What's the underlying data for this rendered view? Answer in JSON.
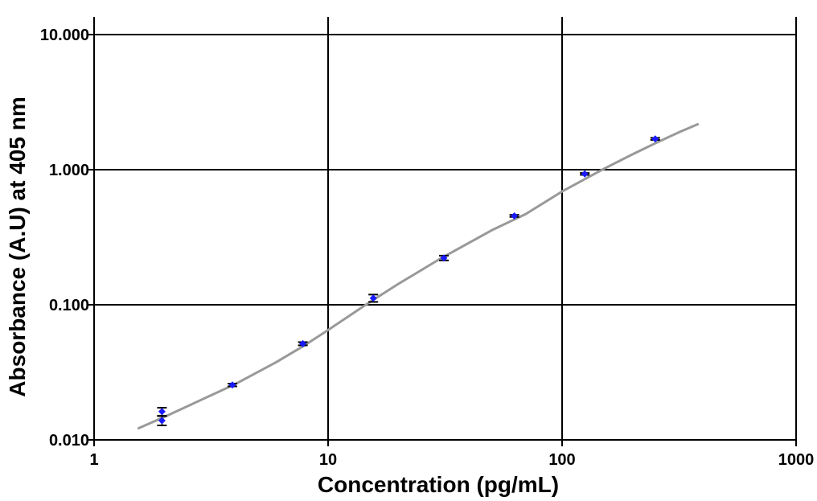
{
  "chart_data": {
    "type": "scatter",
    "title": "",
    "xlabel": "Concentration (pg/mL)",
    "ylabel": "Absorbance (A.U) at 405 nm",
    "x_scale": "log",
    "y_scale": "log",
    "xlim": [
      1,
      1000
    ],
    "ylim": [
      0.01,
      10
    ],
    "x_ticks": [
      1,
      10,
      100,
      1000
    ],
    "x_tick_labels": [
      "1",
      "10",
      "100",
      "1000"
    ],
    "y_ticks": [
      0.01,
      0.1,
      1,
      10
    ],
    "y_tick_labels": [
      "0.010",
      "0.100",
      "1.000",
      "10.000"
    ],
    "grid": true,
    "legend": "none",
    "colors": {
      "points": "#1a1aff",
      "fit_line": "#999999",
      "grid": "#000000"
    },
    "series": [
      {
        "kind": "points",
        "points": [
          {
            "x": 1.95,
            "y": 0.0162,
            "err": 0.0011
          },
          {
            "x": 1.95,
            "y": 0.0139,
            "err": 0.0011
          },
          {
            "x": 3.9,
            "y": 0.0255,
            "err": 0.0006
          },
          {
            "x": 7.8,
            "y": 0.0515,
            "err": 0.0014
          },
          {
            "x": 15.6,
            "y": 0.112,
            "err": 0.007
          },
          {
            "x": 31.25,
            "y": 0.222,
            "err": 0.009
          },
          {
            "x": 62.5,
            "y": 0.455,
            "err": 0.008
          },
          {
            "x": 125,
            "y": 0.93,
            "err": 0.015
          },
          {
            "x": 250,
            "y": 1.69,
            "err": 0.03
          }
        ]
      },
      {
        "kind": "fit",
        "points": [
          {
            "x": 1.55,
            "y": 0.0122
          },
          {
            "x": 2,
            "y": 0.0148
          },
          {
            "x": 3,
            "y": 0.0205
          },
          {
            "x": 4,
            "y": 0.0258
          },
          {
            "x": 6,
            "y": 0.0376
          },
          {
            "x": 8,
            "y": 0.0505
          },
          {
            "x": 10,
            "y": 0.065
          },
          {
            "x": 15,
            "y": 0.104
          },
          {
            "x": 20,
            "y": 0.143
          },
          {
            "x": 30,
            "y": 0.218
          },
          {
            "x": 50,
            "y": 0.356
          },
          {
            "x": 70,
            "y": 0.47
          },
          {
            "x": 100,
            "y": 0.69
          },
          {
            "x": 150,
            "y": 1.01
          },
          {
            "x": 200,
            "y": 1.3
          },
          {
            "x": 260,
            "y": 1.62
          },
          {
            "x": 320,
            "y": 1.91
          },
          {
            "x": 380,
            "y": 2.17
          }
        ]
      }
    ]
  }
}
